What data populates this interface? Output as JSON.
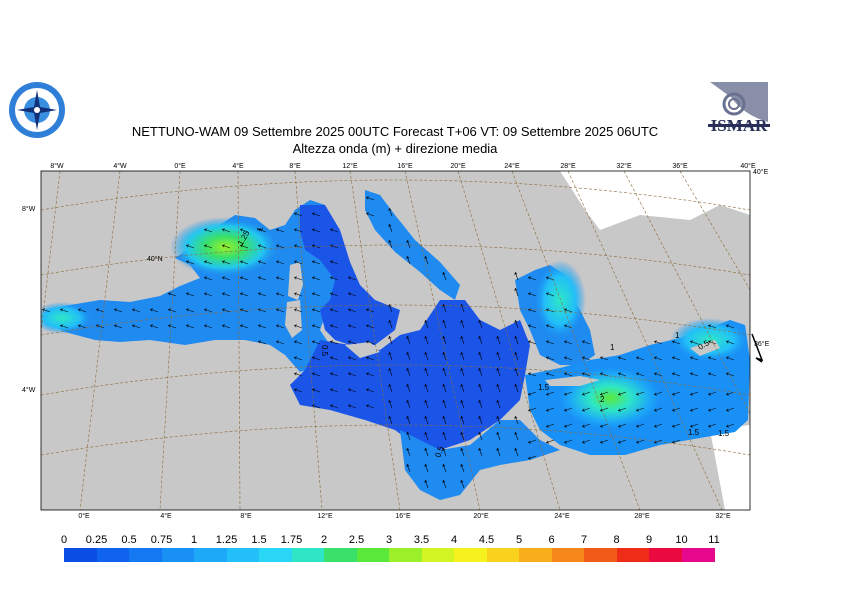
{
  "title_line1": "NETTUNO-WAM  09 Settembre 2025 00UTC Forecast T+06 VT: 09 Settembre 2025 06UTC",
  "title_line2": "Altezza onda (m) + direzione media",
  "logo_right_text": "ISMAR",
  "map": {
    "top_lon_labels": [
      "8°W",
      "4°W",
      "0°E",
      "4°E",
      "8°E",
      "12°E",
      "16°E",
      "20°E",
      "24°E",
      "28°E",
      "32°E",
      "36°E",
      "40°E"
    ],
    "bottom_lon_labels": [
      "0°E",
      "4°E",
      "8°E",
      "12°E",
      "16°E",
      "20°E",
      "24°E",
      "28°E",
      "32°E"
    ],
    "left_lat_labels": [
      "8°W",
      "4°W"
    ],
    "right_lat_labels": [
      "40°E",
      "36°E"
    ],
    "inner_lat_label": "40°N",
    "contour_labels": [
      "1.25",
      "1",
      "0.5",
      "0.5",
      "1.5",
      "2",
      "1.5",
      "1.5",
      "0.5",
      "1",
      "1"
    ],
    "colors": {
      "land": "#c8c8c8",
      "sea_low": "#1a55e8",
      "sea_mid": "#1f8af0",
      "sea_high": "#22c8f0",
      "graticule": "#8c6a3a"
    }
  },
  "colorbar": {
    "labels": [
      "0",
      "0.25",
      "0.5",
      "0.75",
      "1",
      "1.25",
      "1.5",
      "1.75",
      "2",
      "2.5",
      "3",
      "3.5",
      "4",
      "4.5",
      "5",
      "6",
      "7",
      "8",
      "9",
      "10",
      "11"
    ],
    "colors": [
      "#0b4ee6",
      "#0f63ef",
      "#1478f3",
      "#1990f6",
      "#1da8f8",
      "#22bff8",
      "#2ad6f5",
      "#2ee6c6",
      "#39e06a",
      "#5ae83a",
      "#9bf02a",
      "#d2f422",
      "#f6f21e",
      "#f8d21c",
      "#f7ae1a",
      "#f5861a",
      "#f25a19",
      "#ee2c18",
      "#ea0a40",
      "#e6088c"
    ]
  }
}
